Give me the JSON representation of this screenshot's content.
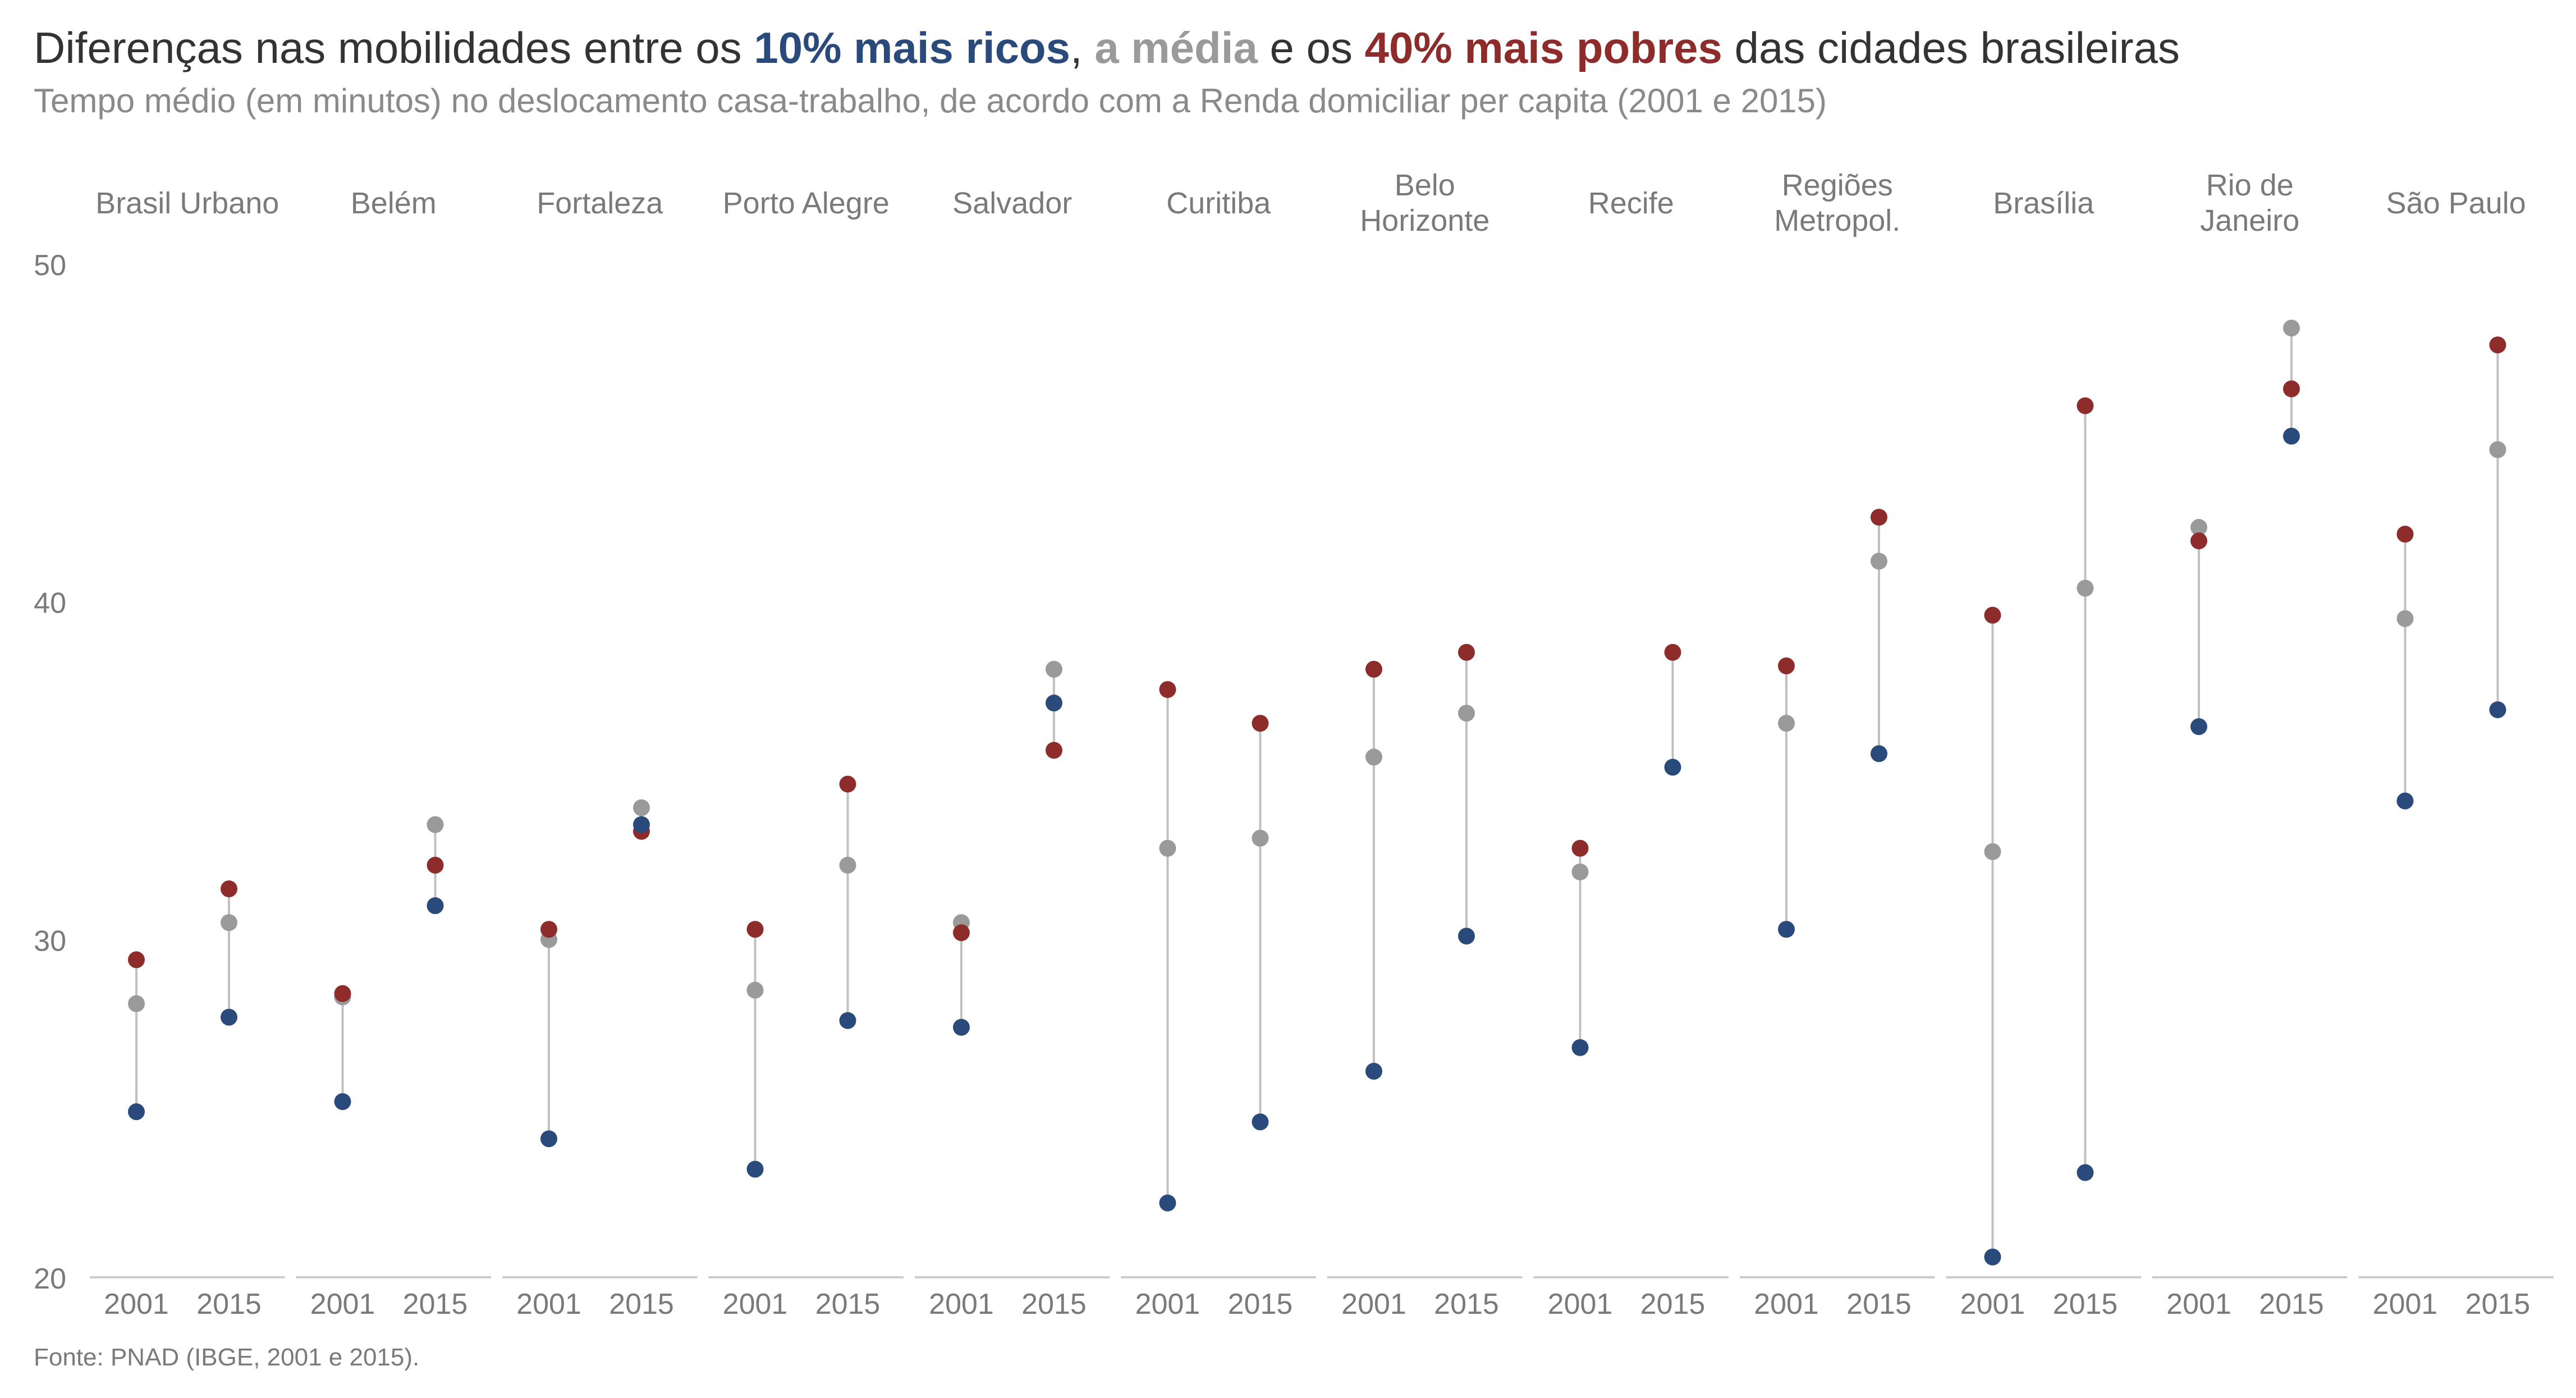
{
  "colors": {
    "rich": "#2b4a7c",
    "mean": "#9a9a9a",
    "poor": "#8e2c2c",
    "title": "#333333",
    "subtitle": "#8a8a8a",
    "axis": "#7a7a7a",
    "connector": "#c0c0c0",
    "baseline": "#cccccc"
  },
  "chart_data": {
    "type": "scatter",
    "title_parts": [
      {
        "text": "Diferenças nas mobilidades entre os ",
        "style": "plain"
      },
      {
        "text": "10% mais ricos",
        "style": "rich"
      },
      {
        "text": ", ",
        "style": "plain"
      },
      {
        "text": "a média",
        "style": "mean"
      },
      {
        "text": " e os ",
        "style": "plain"
      },
      {
        "text": "40% mais pobres",
        "style": "poor"
      },
      {
        "text": " das cidades brasileiras",
        "style": "plain"
      }
    ],
    "subtitle": "Tempo médio (em minutos) no deslocamento casa-trabalho, de acordo com a Renda domiciliar per capita (2001 e 2015)",
    "source": "Fonte: PNAD (IBGE, 2001 e 2015).",
    "ylim": [
      20,
      50
    ],
    "yticks": [
      "20",
      "30",
      "40",
      "50"
    ],
    "years": [
      "2001",
      "2015"
    ],
    "series_keys": [
      "rich",
      "mean",
      "poor"
    ],
    "panels": [
      {
        "label": [
          "Brasil Urbano"
        ],
        "values": {
          "2001": {
            "rich": 24.9,
            "mean": 28.1,
            "poor": 29.4
          },
          "2015": {
            "rich": 27.7,
            "mean": 30.5,
            "poor": 31.5
          }
        }
      },
      {
        "label": [
          "Belém"
        ],
        "values": {
          "2001": {
            "rich": 25.2,
            "mean": 28.3,
            "poor": 28.4
          },
          "2015": {
            "rich": 31.0,
            "mean": 33.4,
            "poor": 32.2
          }
        }
      },
      {
        "label": [
          "Fortaleza"
        ],
        "values": {
          "2001": {
            "rich": 24.1,
            "mean": 30.0,
            "poor": 30.3
          },
          "2015": {
            "rich": 33.4,
            "mean": 33.9,
            "poor": 33.2
          }
        }
      },
      {
        "label": [
          "Porto Alegre"
        ],
        "values": {
          "2001": {
            "rich": 23.2,
            "mean": 28.5,
            "poor": 30.3
          },
          "2015": {
            "rich": 27.6,
            "mean": 32.2,
            "poor": 34.6
          }
        }
      },
      {
        "label": [
          "Salvador"
        ],
        "values": {
          "2001": {
            "rich": 27.4,
            "mean": 30.5,
            "poor": 30.2
          },
          "2015": {
            "rich": 37.0,
            "mean": 38.0,
            "poor": 35.6
          }
        }
      },
      {
        "label": [
          "Curitiba"
        ],
        "values": {
          "2001": {
            "rich": 22.2,
            "mean": 32.7,
            "poor": 37.4
          },
          "2015": {
            "rich": 24.6,
            "mean": 33.0,
            "poor": 36.4
          }
        }
      },
      {
        "label": [
          "Belo",
          "Horizonte"
        ],
        "values": {
          "2001": {
            "rich": 26.1,
            "mean": 35.4,
            "poor": 38.0
          },
          "2015": {
            "rich": 30.1,
            "mean": 36.7,
            "poor": 38.5
          }
        }
      },
      {
        "label": [
          "Recife"
        ],
        "values": {
          "2001": {
            "rich": 26.8,
            "mean": 32.0,
            "poor": 32.7
          },
          "2015": {
            "rich": 35.1,
            "mean": null,
            "poor": 38.5
          }
        }
      },
      {
        "label": [
          "Regiões",
          "Metropol."
        ],
        "values": {
          "2001": {
            "rich": 30.3,
            "mean": 36.4,
            "poor": 38.1
          },
          "2015": {
            "rich": 35.5,
            "mean": 41.2,
            "poor": 42.5
          }
        }
      },
      {
        "label": [
          "Brasília"
        ],
        "values": {
          "2001": {
            "rich": 20.6,
            "mean": 32.6,
            "poor": 39.6
          },
          "2015": {
            "rich": 23.1,
            "mean": 40.4,
            "poor": 45.8
          }
        }
      },
      {
        "label": [
          "Rio de",
          "Janeiro"
        ],
        "values": {
          "2001": {
            "rich": 36.3,
            "mean": 42.2,
            "poor": 41.8
          },
          "2015": {
            "rich": 44.9,
            "mean": 48.1,
            "poor": 46.3
          }
        }
      },
      {
        "label": [
          "São Paulo"
        ],
        "values": {
          "2001": {
            "rich": 34.1,
            "mean": 39.5,
            "poor": 42.0
          },
          "2015": {
            "rich": 36.8,
            "mean": 44.5,
            "poor": 47.6
          }
        }
      }
    ]
  }
}
